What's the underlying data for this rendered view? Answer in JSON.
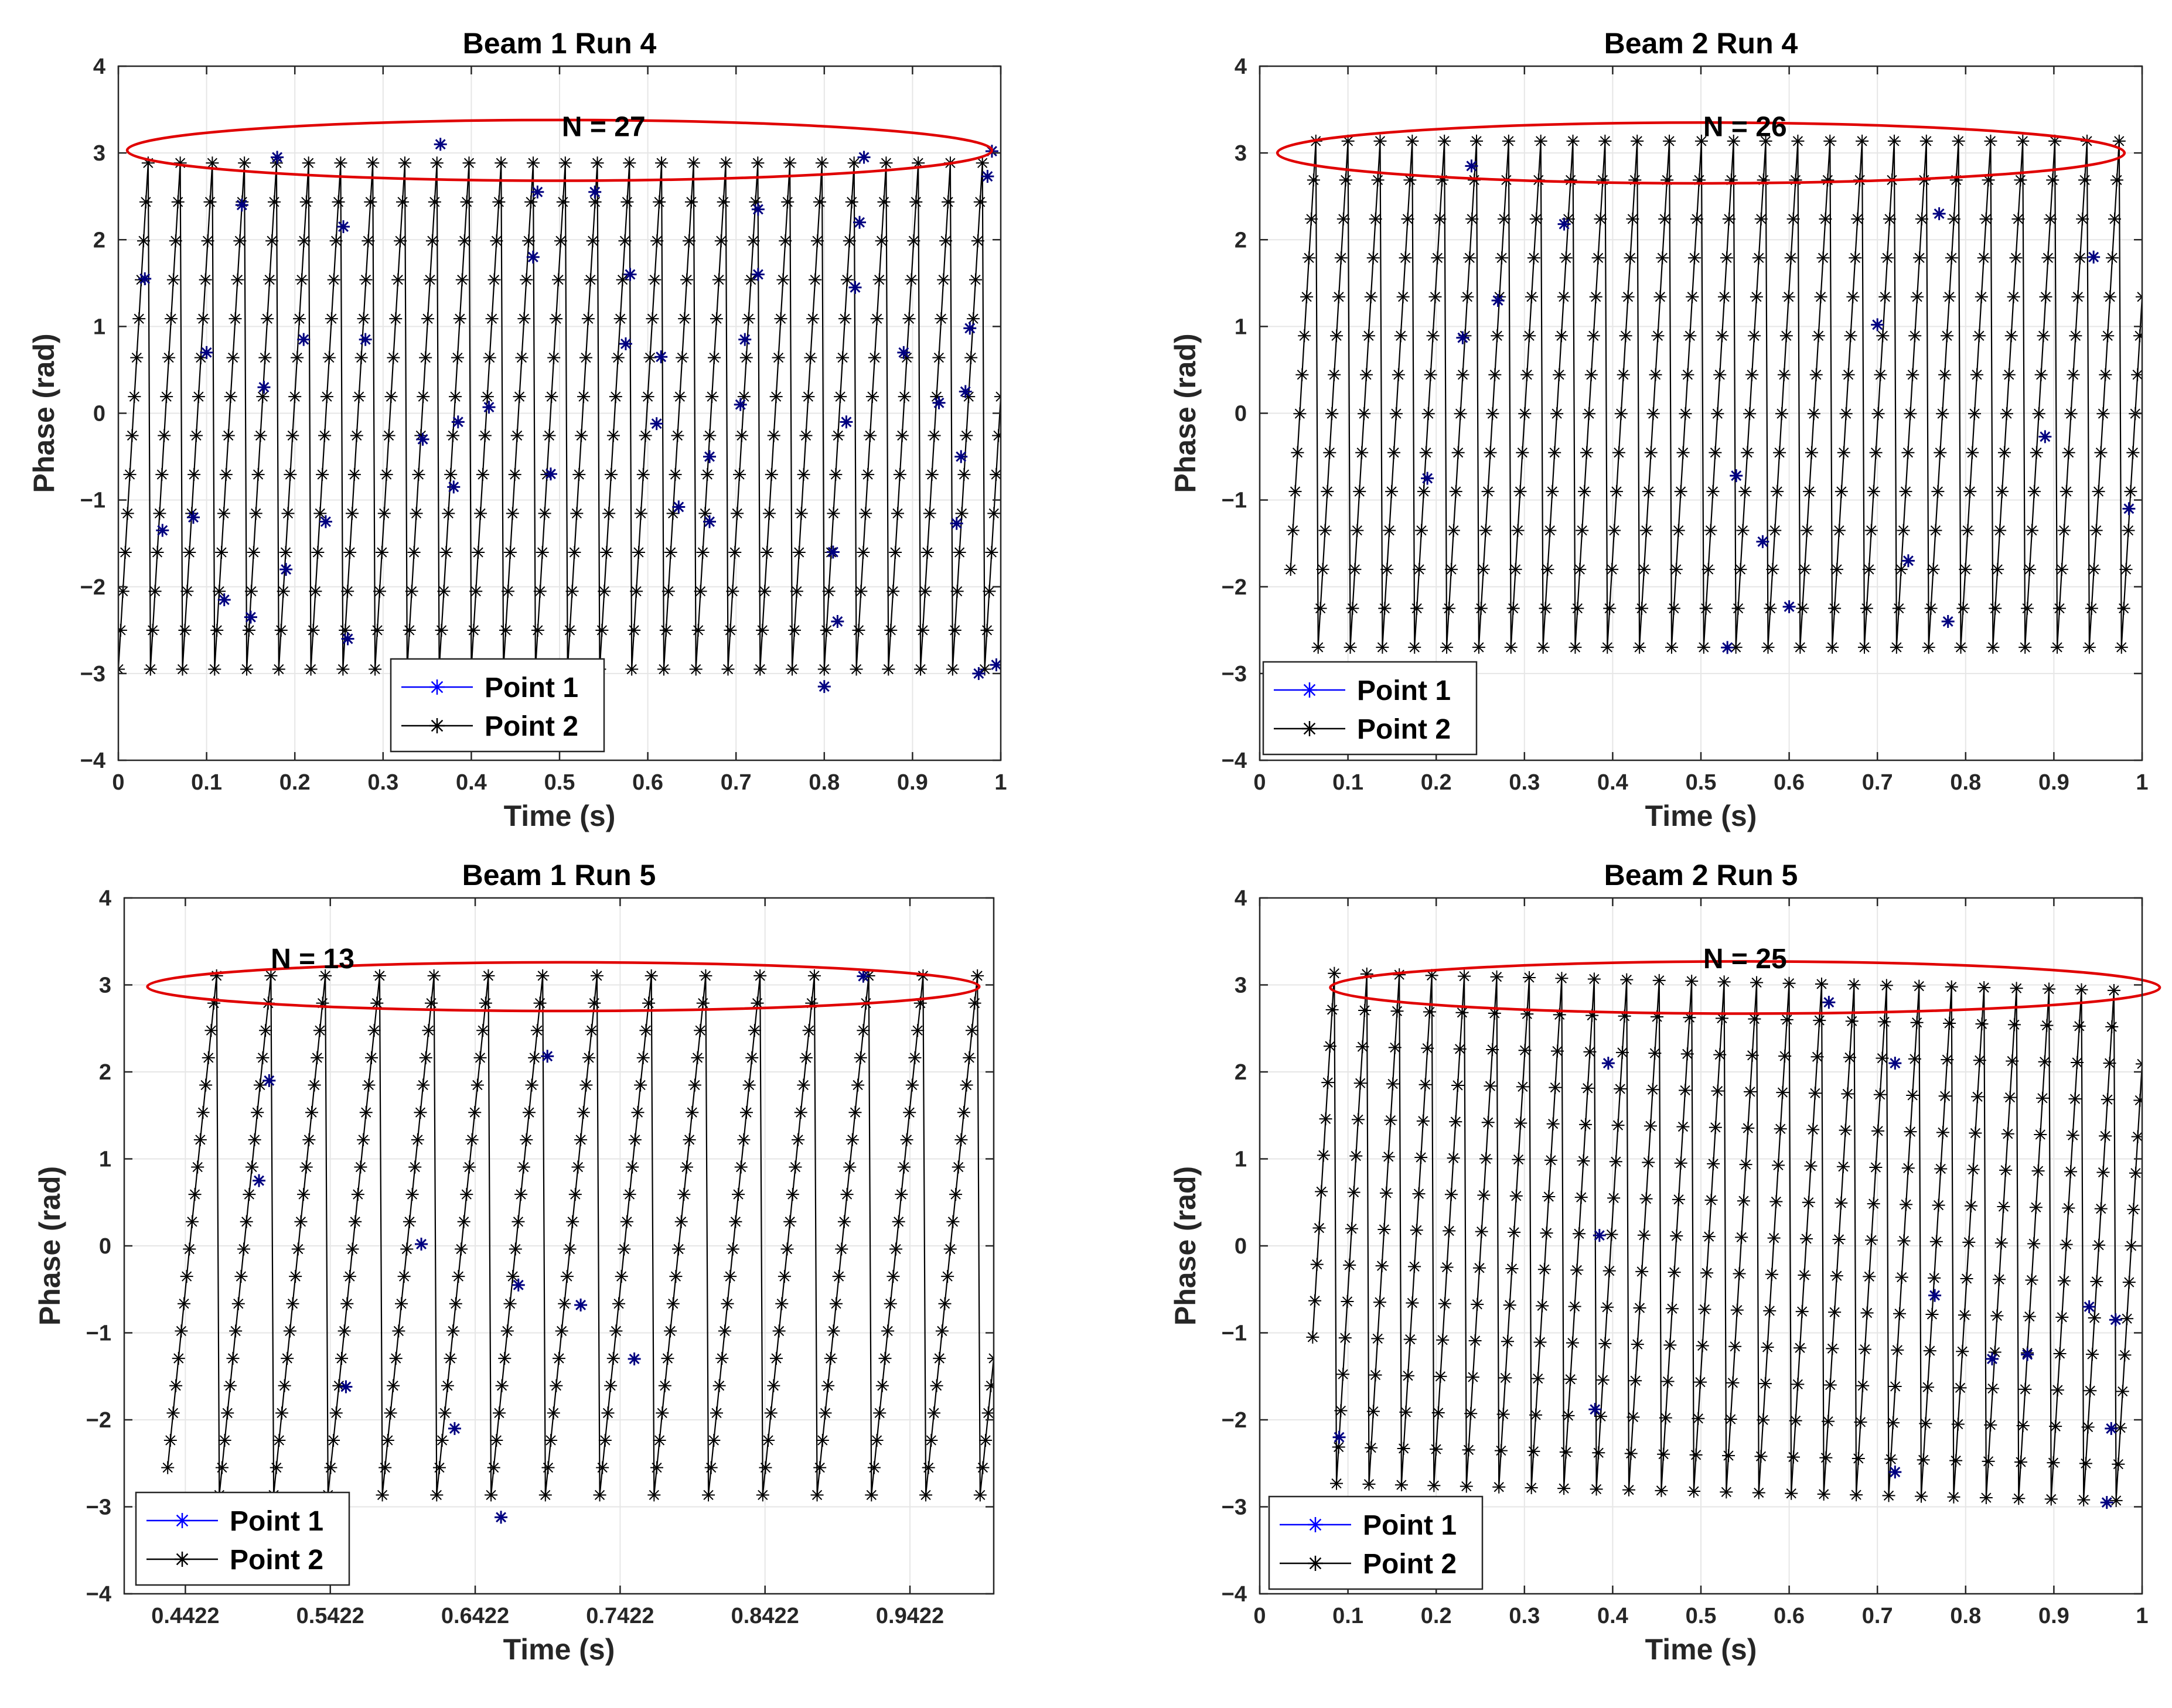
{
  "colors": {
    "point1": "#0000ff",
    "point1_marker": "#000080",
    "point2": "#000000",
    "ellipse": "#e00000",
    "grid": "#e6e6e6",
    "axis": "#262626"
  },
  "chart_data": [
    {
      "type": "line",
      "title": "Beam 1 Run 4",
      "xlabel": "Time (s)",
      "ylabel": "Phase (rad)",
      "xlim": [
        0,
        1
      ],
      "ylim": [
        -4,
        4
      ],
      "xticks": [
        0,
        0.1,
        0.2,
        0.3,
        0.4,
        0.5,
        0.6,
        0.7,
        0.8,
        0.9,
        1
      ],
      "xtick_labels": [
        "0",
        "0.1",
        "0.2",
        "0.3",
        "0.4",
        "0.5",
        "0.6",
        "0.7",
        "0.8",
        "0.9",
        "1"
      ],
      "yticks": [
        -4,
        -3,
        -2,
        -1,
        0,
        1,
        2,
        3,
        4
      ],
      "ytick_labels": [
        "−4",
        "−3",
        "−2",
        "−1",
        "0",
        "1",
        "2",
        "3",
        "4"
      ],
      "annotation": "N = 27",
      "annotation_pos": [
        0.55,
        3.3
      ],
      "ellipse": {
        "cx": 0.5,
        "cy": 3.03,
        "rx": 0.49,
        "ry": 0.35
      },
      "legend": [
        "Point 1",
        "Point 2"
      ],
      "legend_loc": "lower-center",
      "series": [
        {
          "name": "Point 2",
          "start": 0.0,
          "end": 1.0,
          "cycles": 27.5,
          "phase0": -2.95,
          "samples_per_cycle": 14
        },
        {
          "name": "Point 1",
          "points": [
            [
              0.03,
              1.55
            ],
            [
              0.05,
              -1.35
            ],
            [
              0.085,
              -1.2
            ],
            [
              0.1,
              0.7
            ],
            [
              0.12,
              -2.15
            ],
            [
              0.14,
              2.4
            ],
            [
              0.15,
              -2.35
            ],
            [
              0.165,
              0.3
            ],
            [
              0.18,
              2.95
            ],
            [
              0.19,
              -1.8
            ],
            [
              0.21,
              0.85
            ],
            [
              0.235,
              -1.25
            ],
            [
              0.255,
              2.15
            ],
            [
              0.26,
              -2.6
            ],
            [
              0.28,
              0.85
            ],
            [
              0.345,
              -0.3
            ],
            [
              0.365,
              3.1
            ],
            [
              0.38,
              -0.85
            ],
            [
              0.385,
              -0.1
            ],
            [
              0.42,
              0.07
            ],
            [
              0.475,
              2.55
            ],
            [
              0.47,
              1.8
            ],
            [
              0.49,
              -0.7
            ],
            [
              0.54,
              2.55
            ],
            [
              0.575,
              0.8
            ],
            [
              0.58,
              1.6
            ],
            [
              0.61,
              -0.12
            ],
            [
              0.615,
              0.65
            ],
            [
              0.635,
              -1.08
            ],
            [
              0.67,
              -0.5
            ],
            [
              0.67,
              -1.25
            ],
            [
              0.705,
              0.1
            ],
            [
              0.71,
              0.85
            ],
            [
              0.725,
              1.6
            ],
            [
              0.725,
              2.35
            ],
            [
              0.8,
              -3.15
            ],
            [
              0.81,
              -1.6
            ],
            [
              0.815,
              -2.4
            ],
            [
              0.825,
              -0.1
            ],
            [
              0.835,
              1.45
            ],
            [
              0.84,
              2.2
            ],
            [
              0.845,
              2.95
            ],
            [
              0.89,
              0.7
            ],
            [
              0.93,
              0.12
            ],
            [
              0.95,
              -1.27
            ],
            [
              0.955,
              -0.5
            ],
            [
              0.96,
              0.25
            ],
            [
              0.965,
              0.98
            ],
            [
              0.975,
              -3.0
            ],
            [
              0.985,
              2.73
            ],
            [
              0.99,
              3.02
            ],
            [
              0.995,
              -2.9
            ]
          ]
        }
      ]
    },
    {
      "type": "line",
      "title": "Beam 2 Run 4",
      "xlabel": "Time (s)",
      "ylabel": "Phase (rad)",
      "xlim": [
        0,
        1
      ],
      "ylim": [
        -4,
        4
      ],
      "xticks": [
        0,
        0.1,
        0.2,
        0.3,
        0.4,
        0.5,
        0.6,
        0.7,
        0.8,
        0.9,
        1
      ],
      "xtick_labels": [
        "0",
        "0.1",
        "0.2",
        "0.3",
        "0.4",
        "0.5",
        "0.6",
        "0.7",
        "0.8",
        "0.9",
        "1"
      ],
      "yticks": [
        -4,
        -3,
        -2,
        -1,
        0,
        1,
        2,
        3,
        4
      ],
      "ytick_labels": [
        "−4",
        "−3",
        "−2",
        "−1",
        "0",
        "1",
        "2",
        "3",
        "4"
      ],
      "annotation": "N = 26",
      "annotation_pos": [
        0.55,
        3.3
      ],
      "ellipse": {
        "cx": 0.5,
        "cy": 3.0,
        "rx": 0.48,
        "ry": 0.35
      },
      "legend": [
        "Point 1",
        "Point 2"
      ],
      "legend_loc": "lower-left",
      "series": [
        {
          "name": "Point 2",
          "start": 0.035,
          "end": 1.0,
          "cycles": 26.5,
          "phase0": -1.8,
          "samples_per_cycle": 14
        },
        {
          "name": "Point 1",
          "points": [
            [
              0.19,
              -0.75
            ],
            [
              0.23,
              0.87
            ],
            [
              0.24,
              2.85
            ],
            [
              0.27,
              1.3
            ],
            [
              0.345,
              2.18
            ],
            [
              0.54,
              -0.72
            ],
            [
              0.53,
              -2.7
            ],
            [
              0.57,
              -1.48
            ],
            [
              0.6,
              -2.23
            ],
            [
              0.7,
              1.02
            ],
            [
              0.735,
              -1.7
            ],
            [
              0.77,
              2.3
            ],
            [
              0.78,
              -2.4
            ],
            [
              0.89,
              -0.27
            ],
            [
              0.945,
              1.8
            ],
            [
              0.985,
              -1.1
            ]
          ]
        }
      ]
    },
    {
      "type": "line",
      "title": "Beam 1 Run 5",
      "xlabel": "Time (s)",
      "ylabel": "Phase (rad)",
      "xlim": [
        0.4,
        1.0
      ],
      "ylim": [
        -4,
        4
      ],
      "xticks": [
        0.4422,
        0.5422,
        0.6422,
        0.7422,
        0.8422,
        0.9422
      ],
      "xtick_labels": [
        "0.4422",
        "0.5422",
        "0.6422",
        "0.7422",
        "0.8422",
        "0.9422"
      ],
      "yticks": [
        -4,
        -3,
        -2,
        -1,
        0,
        1,
        2,
        3,
        4
      ],
      "ytick_labels": [
        "−4",
        "−3",
        "−2",
        "−1",
        "0",
        "1",
        "2",
        "3",
        "4"
      ],
      "annotation": "N = 13",
      "annotation_pos": [
        0.53,
        3.3
      ],
      "ellipse": {
        "cx": 0.703,
        "cy": 2.98,
        "rx": 0.287,
        "ry": 0.28
      },
      "legend": [
        "Point 1",
        "Point 2"
      ],
      "legend_loc": "lower-left",
      "series": [
        {
          "name": "Point 2",
          "start": 0.43,
          "end": 1.0,
          "cycles": 15.2,
          "phase0": -2.55,
          "samples_per_cycle": 20
        },
        {
          "name": "Point 1",
          "points": [
            [
              0.493,
              0.75
            ],
            [
              0.5,
              1.9
            ],
            [
              0.553,
              -1.62
            ],
            [
              0.605,
              0.02
            ],
            [
              0.628,
              -2.1
            ],
            [
              0.66,
              -3.12
            ],
            [
              0.672,
              -0.45
            ],
            [
              0.692,
              2.18
            ],
            [
              0.715,
              -0.68
            ],
            [
              0.752,
              -1.3
            ],
            [
              0.91,
              3.1
            ]
          ]
        }
      ]
    },
    {
      "type": "line",
      "title": "Beam 2 Run 5",
      "xlabel": "Time (s)",
      "ylabel": "Phase (rad)",
      "xlim": [
        0,
        1
      ],
      "ylim": [
        -4,
        4
      ],
      "xticks": [
        0,
        0.1,
        0.2,
        0.3,
        0.4,
        0.5,
        0.6,
        0.7,
        0.8,
        0.9,
        1
      ],
      "xtick_labels": [
        "0",
        "0.1",
        "0.2",
        "0.3",
        "0.4",
        "0.5",
        "0.6",
        "0.7",
        "0.8",
        "0.9",
        "1"
      ],
      "yticks": [
        -4,
        -3,
        -2,
        -1,
        0,
        1,
        2,
        3,
        4
      ],
      "ytick_labels": [
        "−4",
        "−3",
        "−2",
        "−1",
        "0",
        "1",
        "2",
        "3",
        "4"
      ],
      "annotation": "N = 25",
      "annotation_pos": [
        0.55,
        3.3
      ],
      "ellipse": {
        "cx": 0.55,
        "cy": 2.97,
        "rx": 0.47,
        "ry": 0.3
      },
      "legend": [
        "Point 1",
        "Point 2"
      ],
      "legend_loc": "lower-left",
      "series": [
        {
          "name": "Point 2",
          "start": 0.06,
          "end": 1.0,
          "cycles": 25.5,
          "phase0": -1.05,
          "samples_per_cycle": 15
        },
        {
          "name": "Point 1",
          "points": [
            [
              0.09,
              -2.2
            ],
            [
              0.38,
              -1.88
            ],
            [
              0.385,
              0.12
            ],
            [
              0.395,
              2.1
            ],
            [
              0.645,
              2.8
            ],
            [
              0.72,
              2.1
            ],
            [
              0.72,
              -2.6
            ],
            [
              0.765,
              -0.57
            ],
            [
              0.83,
              -1.3
            ],
            [
              0.87,
              -1.25
            ],
            [
              0.94,
              -0.7
            ],
            [
              0.96,
              -2.95
            ],
            [
              0.965,
              -2.1
            ],
            [
              0.97,
              -0.85
            ]
          ]
        }
      ]
    }
  ]
}
